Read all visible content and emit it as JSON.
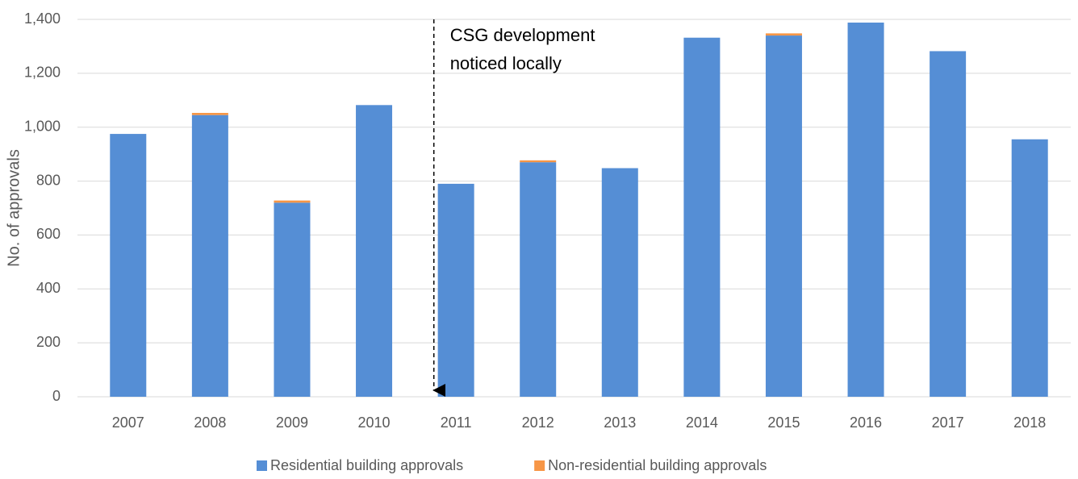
{
  "chart_data": {
    "type": "stacked_bar",
    "y_label": "No. of approvals",
    "annotation": [
      "CSG development",
      "noticed locally"
    ],
    "categories": [
      "2007",
      "2008",
      "2009",
      "2010",
      "2011",
      "2012",
      "2013",
      "2014",
      "2015",
      "2016",
      "2017",
      "2018"
    ],
    "series": [
      {
        "name": "Residential building approvals",
        "color": "#558ed5",
        "values": [
          975,
          1045,
          720,
          1082,
          790,
          870,
          848,
          1332,
          1340,
          1388,
          1282,
          955
        ]
      },
      {
        "name": "Non-residential building approvals",
        "color": "#f79646",
        "values": [
          0,
          8,
          8,
          0,
          0,
          7,
          0,
          0,
          8,
          0,
          0,
          0
        ]
      }
    ],
    "ylim": [
      0,
      1400
    ],
    "yticks": [
      0,
      200,
      400,
      600,
      800,
      {
        "value": 1000,
        "label": "1,000"
      },
      {
        "value": 1200,
        "label": "1,200"
      },
      {
        "value": 1400,
        "label": "1,400"
      }
    ],
    "grid": true,
    "legend": "bottom"
  }
}
